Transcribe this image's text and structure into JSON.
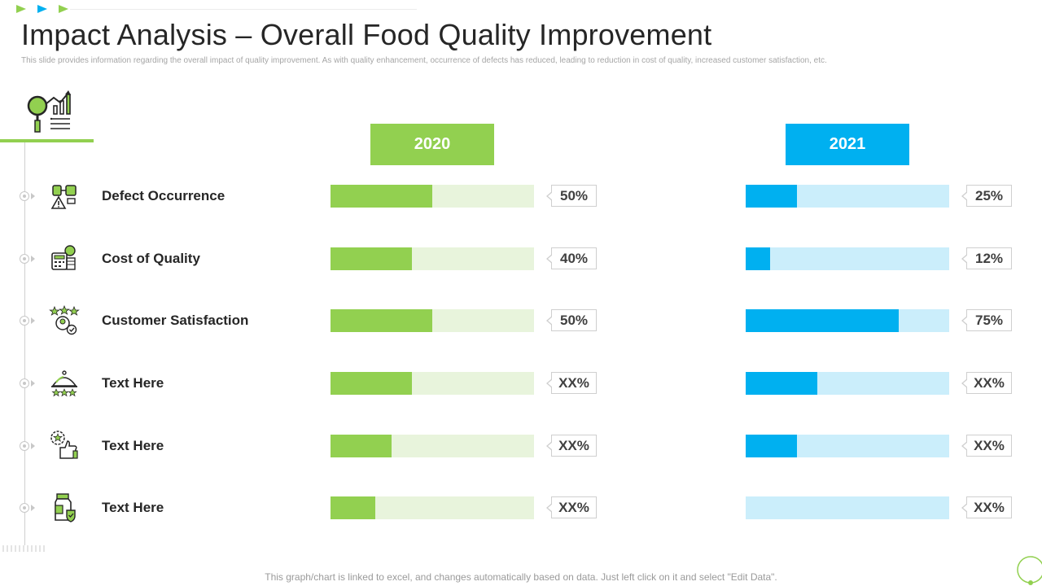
{
  "header": {
    "title": "Impact Analysis – Overall Food Quality Improvement",
    "subtitle": "This slide provides information regarding the overall impact  of quality improvement.  As with quality enhancement, occurrence of defects has reduced, leading to reduction in cost of quality,  increased customer satisfaction, etc."
  },
  "footer": {
    "note": "This graph/chart is linked to excel,  and changes automatically based on data. Just left click on it and select \"Edit Data\"."
  },
  "colors": {
    "green": "#92d050",
    "green_light": "#e8f4dc",
    "blue": "#00b0f0",
    "blue_light": "#cbeefb"
  },
  "chart_data": {
    "type": "bar",
    "orientation": "horizontal",
    "title": "Impact Analysis – Overall Food Quality Improvement",
    "xlim": [
      0,
      100
    ],
    "categories": [
      "Defect Occurrence",
      "Cost of Quality",
      "Customer Satisfaction",
      "Text Here",
      "Text Here",
      "Text Here"
    ],
    "icons": [
      "defect-occurrence-icon",
      "cost-of-quality-icon",
      "customer-satisfaction-icon",
      "food-service-icon",
      "quality-approval-icon",
      "food-package-icon"
    ],
    "series": [
      {
        "name": "2020",
        "values": [
          50,
          40,
          50,
          40,
          30,
          22
        ],
        "labels": [
          "50%",
          "40%",
          "50%",
          "XX%",
          "XX%",
          "XX%"
        ]
      },
      {
        "name": "2021",
        "values": [
          25,
          12,
          75,
          35,
          25,
          0
        ],
        "labels": [
          "25%",
          "12%",
          "75%",
          "XX%",
          "XX%",
          "XX%"
        ]
      }
    ]
  }
}
